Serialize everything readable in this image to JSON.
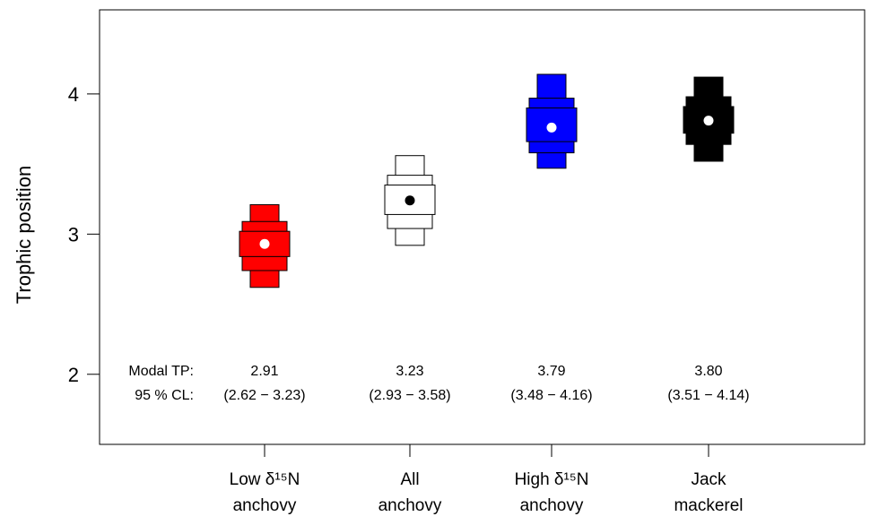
{
  "chart_data": {
    "type": "boxplot-density",
    "title": "",
    "xlabel": "",
    "ylabel": "Trophic position",
    "ylim": [
      1.5,
      4.6
    ],
    "yticks": [
      "2",
      "3",
      "4"
    ],
    "grid": false,
    "legend": "none",
    "annotation_row_labels": {
      "modal": "Modal TP:",
      "ci": "95 % CL:"
    },
    "categories": [
      {
        "line1": "Low δ¹⁵N",
        "line2": "anchovy"
      },
      {
        "line1": "All",
        "line2": "anchovy"
      },
      {
        "line1": "High δ¹⁵N",
        "line2": "anchovy"
      },
      {
        "line1": "Jack",
        "line2": "mackerel"
      }
    ],
    "series": [
      {
        "fill": "#ff0000",
        "dot": "#ffffff",
        "modal_label": "2.91",
        "ci_label": "(2.62 − 3.23)",
        "mode": 2.93,
        "bands": [
          {
            "lo": 2.62,
            "hi": 3.21,
            "level": 0.95
          },
          {
            "lo": 2.74,
            "hi": 3.09,
            "level": 0.75
          },
          {
            "lo": 2.84,
            "hi": 3.02,
            "level": 0.5
          }
        ]
      },
      {
        "fill": "#ffffff",
        "dot": "#000000",
        "modal_label": "3.23",
        "ci_label": "(2.93 − 3.58)",
        "mode": 3.24,
        "bands": [
          {
            "lo": 2.92,
            "hi": 3.56,
            "level": 0.95
          },
          {
            "lo": 3.04,
            "hi": 3.42,
            "level": 0.75
          },
          {
            "lo": 3.14,
            "hi": 3.35,
            "level": 0.5
          }
        ]
      },
      {
        "fill": "#0000ff",
        "dot": "#ffffff",
        "modal_label": "3.79",
        "ci_label": "(3.48 − 4.16)",
        "mode": 3.76,
        "bands": [
          {
            "lo": 3.47,
            "hi": 4.14,
            "level": 0.95
          },
          {
            "lo": 3.58,
            "hi": 3.97,
            "level": 0.75
          },
          {
            "lo": 3.66,
            "hi": 3.9,
            "level": 0.5
          }
        ]
      },
      {
        "fill": "#000000",
        "dot": "#ffffff",
        "modal_label": "3.80",
        "ci_label": "(3.51 − 4.14)",
        "mode": 3.81,
        "bands": [
          {
            "lo": 3.52,
            "hi": 4.12,
            "level": 0.95
          },
          {
            "lo": 3.64,
            "hi": 3.98,
            "level": 0.75
          },
          {
            "lo": 3.72,
            "hi": 3.91,
            "level": 0.5
          }
        ]
      }
    ]
  }
}
